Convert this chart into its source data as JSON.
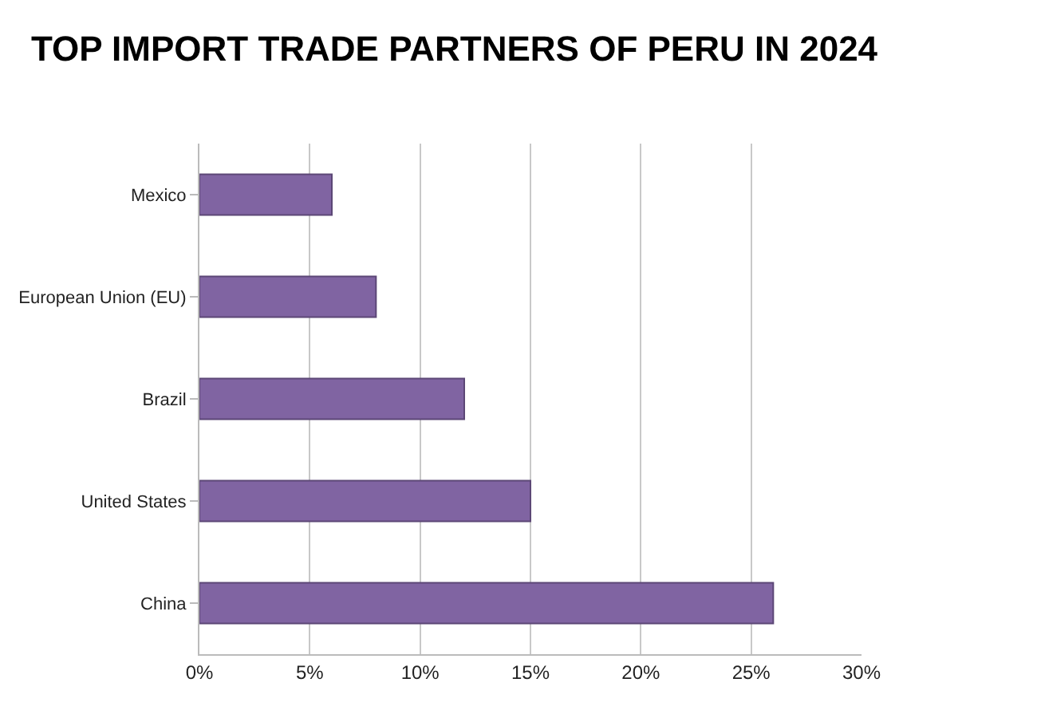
{
  "chart_data": {
    "type": "bar",
    "title": "TOP IMPORT TRADE PARTNERS OF PERU IN 2024",
    "orientation": "horizontal",
    "categories": [
      "Mexico",
      "European Union (EU)",
      "Brazil",
      "United States",
      "China"
    ],
    "values": [
      6,
      8,
      12,
      15,
      26
    ],
    "color": "#8064a2",
    "xlim": [
      0,
      30
    ],
    "xticks": [
      {
        "value": 0,
        "label": "0%"
      },
      {
        "value": 5,
        "label": "5%"
      },
      {
        "value": 10,
        "label": "10%"
      },
      {
        "value": 15,
        "label": "15%"
      },
      {
        "value": 20,
        "label": "20%"
      },
      {
        "value": 25,
        "label": "25%"
      },
      {
        "value": 30,
        "label": "30%"
      }
    ],
    "grid": "x"
  }
}
